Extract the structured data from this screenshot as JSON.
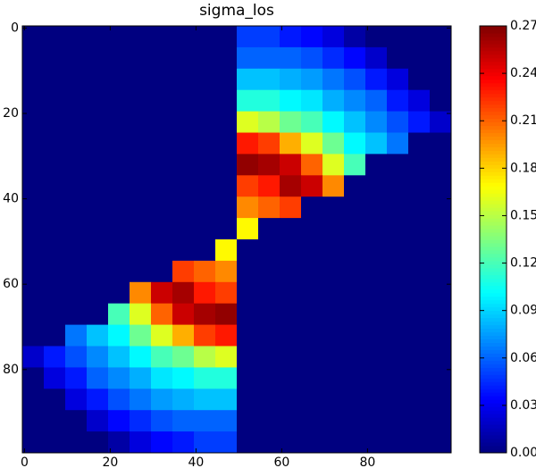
{
  "chart_data": {
    "type": "heatmap",
    "title": "sigma_los",
    "colormap": "jet",
    "xlim": [
      -0.5,
      99.5
    ],
    "ylim": [
      99.5,
      -0.5
    ],
    "xticks": [
      0,
      20,
      40,
      60,
      80
    ],
    "yticks": [
      0,
      20,
      40,
      60,
      80
    ],
    "xbins": [
      -0.5,
      4.5,
      9.5,
      14.5,
      19.5,
      24.5,
      29.5,
      34.5,
      39.5,
      44.5,
      49.5,
      54.5,
      59.5,
      64.5,
      69.5,
      74.5,
      79.5,
      84.5,
      89.5,
      94.5,
      99.5
    ],
    "ybins": [
      -0.5,
      4.5,
      9.5,
      14.5,
      19.5,
      24.5,
      29.5,
      34.5,
      39.5,
      44.5,
      49.5,
      54.5,
      59.5,
      64.5,
      69.5,
      74.5,
      79.5,
      84.5,
      89.5,
      94.5,
      99.5
    ],
    "z": [
      [
        0,
        0,
        0,
        0,
        0,
        0,
        0,
        0,
        0,
        0,
        0.05,
        0.05,
        0.04,
        0.035,
        0.025,
        0.01,
        0,
        0,
        0,
        0
      ],
      [
        0,
        0,
        0,
        0,
        0,
        0,
        0,
        0,
        0,
        0,
        0.06,
        0.06,
        0.06,
        0.055,
        0.045,
        0.035,
        0.02,
        0,
        0,
        0
      ],
      [
        0,
        0,
        0,
        0,
        0,
        0,
        0,
        0,
        0,
        0,
        0.085,
        0.085,
        0.08,
        0.075,
        0.065,
        0.055,
        0.04,
        0.025,
        0,
        0
      ],
      [
        0,
        0,
        0,
        0,
        0,
        0,
        0,
        0,
        0,
        0,
        0.11,
        0.11,
        0.1,
        0.095,
        0.08,
        0.07,
        0.06,
        0.04,
        0.025,
        0
      ],
      [
        0,
        0,
        0,
        0,
        0,
        0,
        0,
        0,
        0,
        0,
        0.16,
        0.15,
        0.13,
        0.12,
        0.1,
        0.085,
        0.07,
        0.055,
        0.04,
        0.02
      ],
      [
        0,
        0,
        0,
        0,
        0,
        0,
        0,
        0,
        0,
        0,
        0.23,
        0.22,
        0.19,
        0.16,
        0.13,
        0.1,
        0.085,
        0.065,
        0,
        0
      ],
      [
        0,
        0,
        0,
        0,
        0,
        0,
        0,
        0,
        0,
        0,
        0.265,
        0.26,
        0.25,
        0.21,
        0.16,
        0.12,
        0,
        0,
        0,
        0
      ],
      [
        0,
        0,
        0,
        0,
        0,
        0,
        0,
        0,
        0,
        0,
        0.22,
        0.23,
        0.26,
        0.25,
        0.2,
        0,
        0,
        0,
        0,
        0
      ],
      [
        0,
        0,
        0,
        0,
        0,
        0,
        0,
        0,
        0,
        0,
        0.2,
        0.21,
        0.22,
        0,
        0,
        0,
        0,
        0,
        0,
        0
      ],
      [
        0,
        0,
        0,
        0,
        0,
        0,
        0,
        0,
        0,
        0,
        0.17,
        0,
        0,
        0,
        0,
        0,
        0,
        0,
        0,
        0
      ],
      [
        0,
        0,
        0,
        0,
        0,
        0,
        0,
        0,
        0,
        0.17,
        0,
        0,
        0,
        0,
        0,
        0,
        0,
        0,
        0,
        0
      ],
      [
        0,
        0,
        0,
        0,
        0,
        0,
        0,
        0.22,
        0.21,
        0.2,
        0,
        0,
        0,
        0,
        0,
        0,
        0,
        0,
        0,
        0
      ],
      [
        0,
        0,
        0,
        0,
        0,
        0.2,
        0.25,
        0.26,
        0.23,
        0.22,
        0,
        0,
        0,
        0,
        0,
        0,
        0,
        0,
        0,
        0
      ],
      [
        0,
        0,
        0,
        0,
        0.12,
        0.16,
        0.21,
        0.25,
        0.26,
        0.265,
        0,
        0,
        0,
        0,
        0,
        0,
        0,
        0,
        0,
        0
      ],
      [
        0,
        0,
        0.065,
        0.085,
        0.1,
        0.13,
        0.16,
        0.19,
        0.22,
        0.23,
        0,
        0,
        0,
        0,
        0,
        0,
        0,
        0,
        0,
        0
      ],
      [
        0.02,
        0.04,
        0.055,
        0.07,
        0.085,
        0.1,
        0.12,
        0.13,
        0.15,
        0.16,
        0,
        0,
        0,
        0,
        0,
        0,
        0,
        0,
        0,
        0
      ],
      [
        0,
        0.025,
        0.04,
        0.06,
        0.07,
        0.08,
        0.095,
        0.1,
        0.11,
        0.11,
        0,
        0,
        0,
        0,
        0,
        0,
        0,
        0,
        0,
        0
      ],
      [
        0,
        0,
        0.025,
        0.04,
        0.055,
        0.065,
        0.075,
        0.08,
        0.085,
        0.085,
        0,
        0,
        0,
        0,
        0,
        0,
        0,
        0,
        0,
        0
      ],
      [
        0,
        0,
        0,
        0.02,
        0.035,
        0.045,
        0.055,
        0.06,
        0.06,
        0.06,
        0,
        0,
        0,
        0,
        0,
        0,
        0,
        0,
        0,
        0
      ],
      [
        0,
        0,
        0,
        0,
        0.01,
        0.025,
        0.035,
        0.04,
        0.05,
        0.05,
        0,
        0,
        0,
        0,
        0,
        0,
        0,
        0,
        0,
        0
      ]
    ],
    "colorbar": {
      "lim": [
        0,
        0.27
      ],
      "ticks": [
        {
          "value": 0,
          "label": "0.00"
        },
        0.03,
        0.06,
        0.09,
        0.12,
        0.15,
        0.18,
        0.21,
        0.24,
        0.27
      ]
    }
  }
}
